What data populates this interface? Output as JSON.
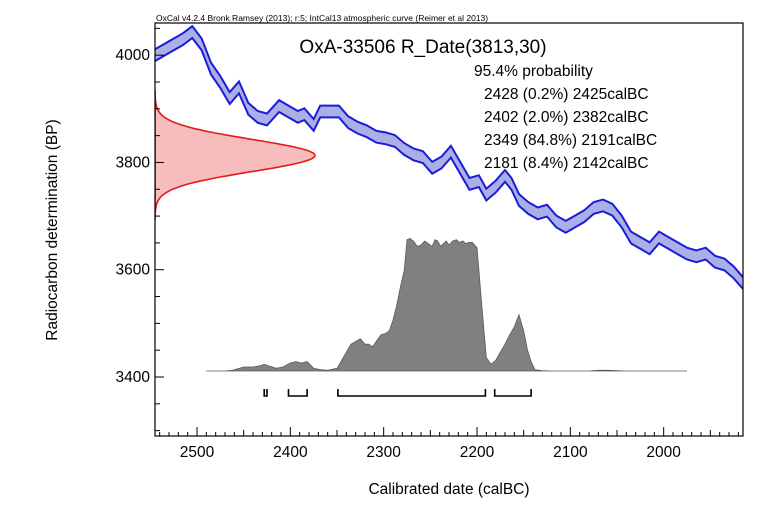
{
  "header": "OxCal v4.2.4 Bronk Ramsey (2013); r:5; IntCal13 atmospheric curve (Reimer et al 2013)",
  "chart_data": {
    "type": "area",
    "title": "OxA-33506 R_Date(3813,30)",
    "xlabel": "Calibrated date (calBC)",
    "ylabel": "Radiocarbon determination (BP)",
    "xlim": [
      2545,
      1915
    ],
    "ylim": [
      3290,
      4060
    ],
    "x_ticks": [
      2500,
      2400,
      2300,
      2200,
      2100,
      2000
    ],
    "y_ticks": [
      3400,
      3600,
      3800,
      4000
    ],
    "probability_label": "95.4% probability",
    "ranges": [
      {
        "text": "2428 (0.2%) 2425calBC",
        "from": 2428,
        "to": 2425,
        "prob": 0.2
      },
      {
        "text": "2402 (2.0%) 2382calBC",
        "from": 2402,
        "to": 2382,
        "prob": 2.0
      },
      {
        "text": "2349 (84.8%) 2191calBC",
        "from": 2349,
        "to": 2191,
        "prob": 84.8
      },
      {
        "text": "2181 (8.4%) 2142calBC",
        "from": 2181,
        "to": 2142,
        "prob": 8.4
      }
    ],
    "radiocarbon_date": {
      "mean": 3813,
      "sigma": 30
    },
    "calibration_curve": {
      "name": "IntCal13",
      "x": [
        2545,
        2530,
        2515,
        2505,
        2495,
        2485,
        2475,
        2465,
        2455,
        2445,
        2435,
        2425,
        2412,
        2402,
        2392,
        2385,
        2375,
        2368,
        2358,
        2348,
        2338,
        2328,
        2318,
        2308,
        2298,
        2288,
        2278,
        2268,
        2258,
        2248,
        2238,
        2228,
        2218,
        2208,
        2198,
        2190,
        2180,
        2170,
        2163,
        2155,
        2145,
        2135,
        2125,
        2115,
        2105,
        2095,
        2085,
        2075,
        2065,
        2055,
        2045,
        2035,
        2025,
        2015,
        2005,
        1995,
        1985,
        1975,
        1965,
        1955,
        1945,
        1935,
        1925,
        1915
      ],
      "y": [
        4000,
        4015,
        4030,
        4043,
        4020,
        3975,
        3950,
        3920,
        3940,
        3900,
        3885,
        3880,
        3905,
        3895,
        3885,
        3890,
        3870,
        3895,
        3895,
        3895,
        3875,
        3865,
        3858,
        3848,
        3845,
        3840,
        3825,
        3815,
        3810,
        3790,
        3800,
        3820,
        3790,
        3760,
        3765,
        3740,
        3755,
        3775,
        3760,
        3730,
        3715,
        3705,
        3710,
        3690,
        3680,
        3690,
        3700,
        3715,
        3720,
        3712,
        3690,
        3660,
        3650,
        3640,
        3660,
        3650,
        3640,
        3630,
        3625,
        3630,
        3615,
        3610,
        3595,
        3575
      ],
      "band_sigma": 11
    },
    "likelihood": {
      "x": [
        2490,
        2470,
        2462,
        2450,
        2440,
        2432,
        2428,
        2424,
        2415,
        2408,
        2400,
        2394,
        2388,
        2382,
        2375,
        2368,
        2360,
        2350,
        2345,
        2340,
        2335,
        2330,
        2325,
        2320,
        2316,
        2312,
        2308,
        2303,
        2298,
        2294,
        2290,
        2286,
        2282,
        2278,
        2275,
        2272,
        2268,
        2264,
        2260,
        2256,
        2252,
        2248,
        2245,
        2242,
        2239,
        2236,
        2233,
        2230,
        2226,
        2222,
        2219,
        2215,
        2212,
        2209,
        2205,
        2200,
        2195,
        2190,
        2185,
        2180,
        2175,
        2170,
        2165,
        2160,
        2155,
        2150,
        2146,
        2142,
        2138,
        2130,
        2120,
        2100,
        2080,
        2070,
        2060,
        2040,
        2000,
        1975
      ],
      "y": [
        0,
        0,
        0.005,
        0.03,
        0.03,
        0.04,
        0.05,
        0.04,
        0.02,
        0.03,
        0.06,
        0.07,
        0.06,
        0.07,
        0.02,
        0.01,
        0.005,
        0.02,
        0.08,
        0.14,
        0.2,
        0.22,
        0.24,
        0.2,
        0.2,
        0.18,
        0.22,
        0.27,
        0.28,
        0.3,
        0.38,
        0.49,
        0.63,
        0.75,
        0.98,
        0.99,
        0.97,
        0.93,
        0.94,
        0.97,
        0.95,
        0.93,
        0.98,
        0.97,
        0.93,
        0.95,
        0.97,
        0.94,
        0.97,
        0.98,
        0.96,
        0.97,
        0.95,
        0.96,
        0.96,
        0.92,
        0.5,
        0.1,
        0.05,
        0.08,
        0.14,
        0.2,
        0.27,
        0.33,
        0.42,
        0.3,
        0.16,
        0.07,
        0.01,
        0.003,
        0,
        0,
        0,
        0.005,
        0.005,
        0,
        0,
        0
      ]
    }
  }
}
